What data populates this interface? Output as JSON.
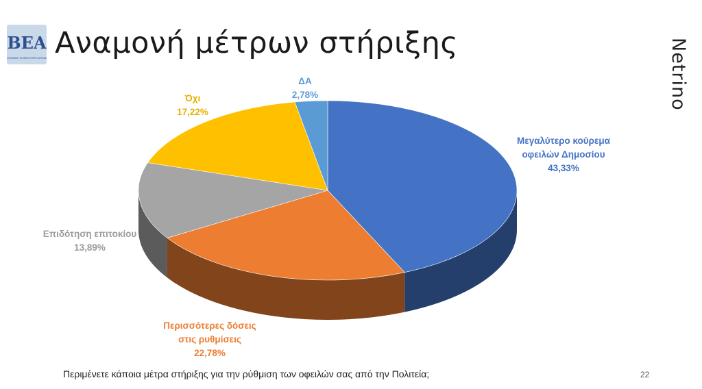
{
  "slide": {
    "title": "Αναμονή μέτρων στήριξης",
    "brand": "Netrino",
    "logo_text": "ΒΕΑ",
    "logo_subtext": "ΒΙΟΤΕΧΝΙΚΟ ΕΠΙΜΕΛΗΤΗΡΙΟ ΑΘΗΝΩΝ",
    "question": "Περιμένετε κάποια μέτρα στήριξης για την ρύθμιση των οφειλών σας από την Πολιτεία;",
    "page_number": "22"
  },
  "chart_data": {
    "type": "pie",
    "title": "",
    "slices": [
      {
        "label_lines": [
          "Μεγαλύτερο κούρεμα",
          "οφειλών Δημοσίου"
        ],
        "value": 43.33,
        "value_label": "43,33%",
        "color": "#4472C4"
      },
      {
        "label_lines": [
          "Περισσότερες δόσεις",
          "στις ρυθμίσεις"
        ],
        "value": 22.78,
        "value_label": "22,78%",
        "color": "#ED7D31"
      },
      {
        "label_lines": [
          "Επιδότηση επιτοκίου"
        ],
        "value": 13.89,
        "value_label": "13,89%",
        "color": "#A5A5A5"
      },
      {
        "label_lines": [
          "Όχι"
        ],
        "value": 17.22,
        "value_label": "17,22%",
        "color": "#FFC000"
      },
      {
        "label_lines": [
          "ΔΑ"
        ],
        "value": 2.78,
        "value_label": "2,78%",
        "color": "#5B9BD5"
      }
    ],
    "legend": "none"
  }
}
